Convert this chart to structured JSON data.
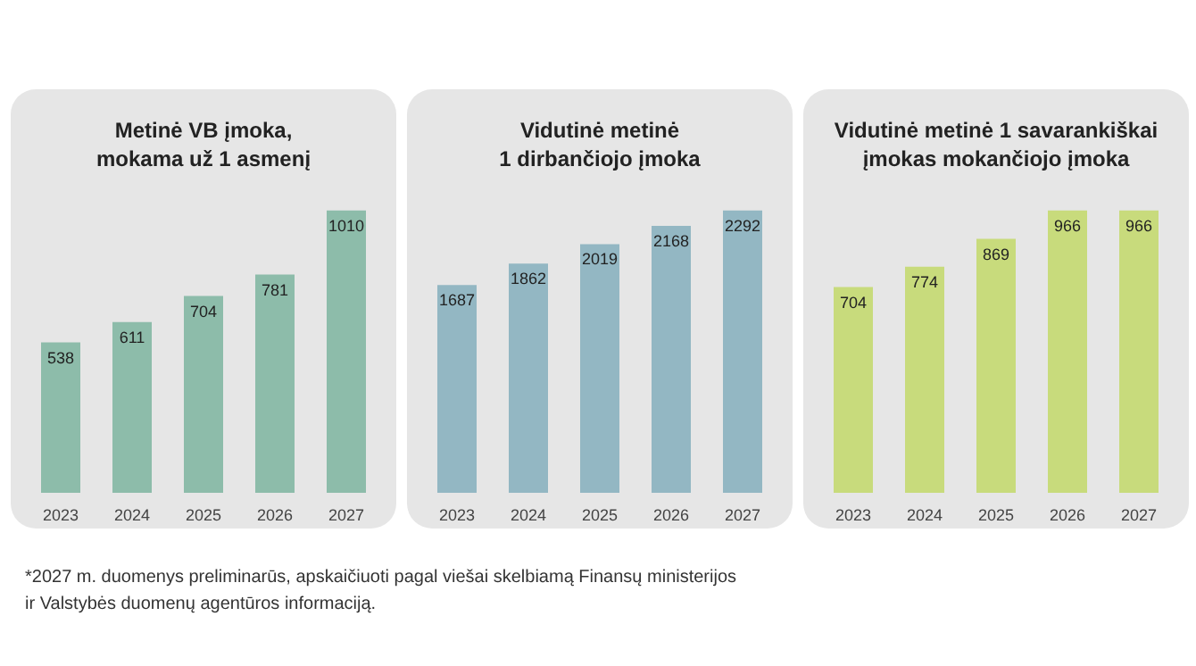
{
  "chart_data": [
    {
      "type": "bar",
      "title": "Metinė VB įmoka,\nmokama už 1 asmenį",
      "categories": [
        "2023",
        "2024",
        "2025",
        "2026",
        "2027"
      ],
      "values": [
        538,
        611,
        704,
        781,
        1010
      ],
      "color": "#8dbcaa",
      "data_labels": true,
      "tick_labels": "x",
      "annotations": [
        "*2027 m. duomenys preliminarūs, apskaičiuoti pagal viešai skelbiamą Finansų ministerijos\nir Valstybės duomenų agentūros informaciją."
      ]
    },
    {
      "type": "bar",
      "title": "Vidutinė metinė\n1 dirbančiojo įmoka",
      "categories": [
        "2023",
        "2024",
        "2025",
        "2026",
        "2027"
      ],
      "values": [
        1687,
        1862,
        2019,
        2168,
        2292
      ],
      "color": "#93b7c3",
      "data_labels": true,
      "tick_labels": "x"
    },
    {
      "type": "bar",
      "title": "Vidutinė metinė 1 savarankiškai\nįmokas mokančiojo įmoka",
      "categories": [
        "2023",
        "2024",
        "2025",
        "2026",
        "2027"
      ],
      "values": [
        704,
        774,
        869,
        966,
        966
      ],
      "color": "#c8db7c",
      "data_labels": true,
      "tick_labels": "x"
    }
  ]
}
